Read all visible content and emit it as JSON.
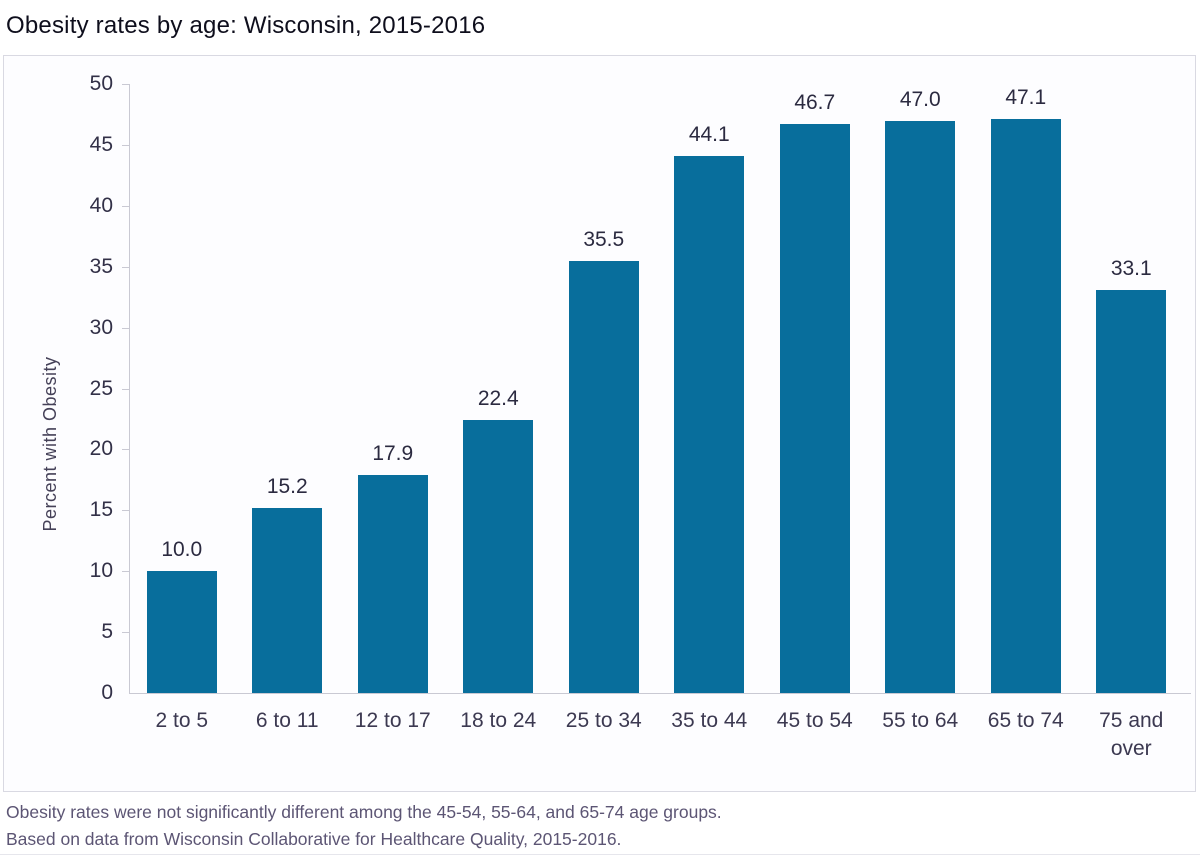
{
  "title": "Obesity rates by age: Wisconsin, 2015-2016",
  "chart_data": {
    "type": "bar",
    "title": "Obesity rates by age: Wisconsin, 2015-2016",
    "categories": [
      "2 to 5",
      "6 to 11",
      "12 to 17",
      "18 to 24",
      "25 to 34",
      "35 to 44",
      "45 to 54",
      "55 to 64",
      "65 to 74",
      "75 and over"
    ],
    "values": [
      10.0,
      15.2,
      17.9,
      22.4,
      35.5,
      44.1,
      46.7,
      47.0,
      47.1,
      33.1
    ],
    "value_labels": [
      "10.0",
      "15.2",
      "17.9",
      "22.4",
      "35.5",
      "44.1",
      "46.7",
      "47.0",
      "47.1",
      "33.1"
    ],
    "xlabel": "",
    "ylabel": "Percent with Obesity",
    "ylim": [
      0,
      50
    ],
    "ytick_interval": 5,
    "yticks": [
      0,
      5,
      10,
      15,
      20,
      25,
      30,
      35,
      40,
      45,
      50
    ],
    "grid": false,
    "legend_position": "none",
    "bar_color": "#086e9c",
    "plot_background": "#fdfdff",
    "axis_color": "#c9c9d3"
  },
  "footer": {
    "line1": "Obesity rates were not significantly different among the 45-54, 55-64, and 65-74 age groups.",
    "line2": "Based on data from Wisconsin Collaborative for Healthcare Quality, 2015-2016."
  }
}
